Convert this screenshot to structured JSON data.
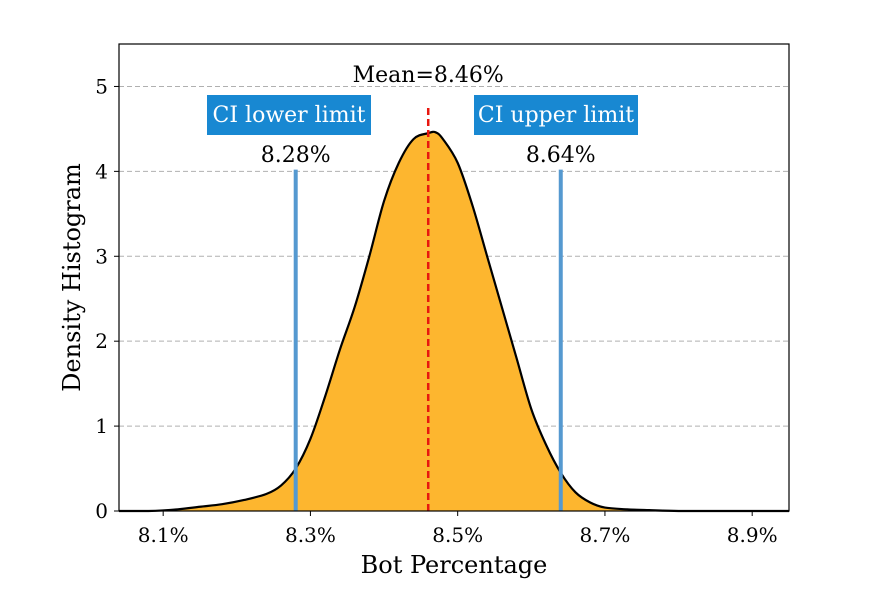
{
  "chart_data": {
    "type": "area",
    "xlabel": "Bot Percentage",
    "ylabel": "Density Histogram",
    "xlim": [
      8.04,
      8.95
    ],
    "ylim": [
      0,
      5.5
    ],
    "x_ticks": [
      {
        "value": 8.1,
        "label": "8.1%"
      },
      {
        "value": 8.3,
        "label": "8.3%"
      },
      {
        "value": 8.5,
        "label": "8.5%"
      },
      {
        "value": 8.7,
        "label": "8.7%"
      },
      {
        "value": 8.9,
        "label": "8.9%"
      }
    ],
    "y_ticks": [
      {
        "value": 0,
        "label": "0"
      },
      {
        "value": 1,
        "label": "1"
      },
      {
        "value": 2,
        "label": "2"
      },
      {
        "value": 3,
        "label": "3"
      },
      {
        "value": 4,
        "label": "4"
      },
      {
        "value": 5,
        "label": "5"
      }
    ],
    "grid": "horizontal-dashed",
    "density": {
      "x": [
        8.04,
        8.08,
        8.12,
        8.15,
        8.18,
        8.21,
        8.24,
        8.26,
        8.28,
        8.3,
        8.32,
        8.34,
        8.36,
        8.38,
        8.4,
        8.42,
        8.44,
        8.46,
        8.47,
        8.48,
        8.5,
        8.52,
        8.54,
        8.56,
        8.58,
        8.6,
        8.62,
        8.64,
        8.66,
        8.68,
        8.7,
        8.73,
        8.76,
        8.8,
        8.85,
        8.9,
        8.95
      ],
      "y": [
        0.0,
        0.0,
        0.02,
        0.05,
        0.08,
        0.13,
        0.2,
        0.3,
        0.5,
        0.85,
        1.35,
        1.9,
        2.4,
        3.0,
        3.65,
        4.1,
        4.38,
        4.45,
        4.46,
        4.38,
        4.1,
        3.6,
        3.0,
        2.4,
        1.8,
        1.2,
        0.78,
        0.45,
        0.22,
        0.1,
        0.04,
        0.02,
        0.01,
        0.0,
        0.0,
        0.0,
        0.0
      ]
    },
    "fill_color": "#FDB62F",
    "line_color": "#000000",
    "mean": {
      "value": 8.46,
      "label": "Mean=8.46%",
      "color": "#E8170F",
      "line_top": 4.75
    },
    "ci_lower": {
      "value": 8.28,
      "label": "8.28%",
      "box_text": "CI lower limit",
      "line_top": 4.02
    },
    "ci_upper": {
      "value": 8.64,
      "label": "8.64%",
      "box_text": "CI upper limit",
      "line_top": 4.02
    },
    "ci_line_color": "#5599D0",
    "ci_box_color": "#1888D2"
  }
}
